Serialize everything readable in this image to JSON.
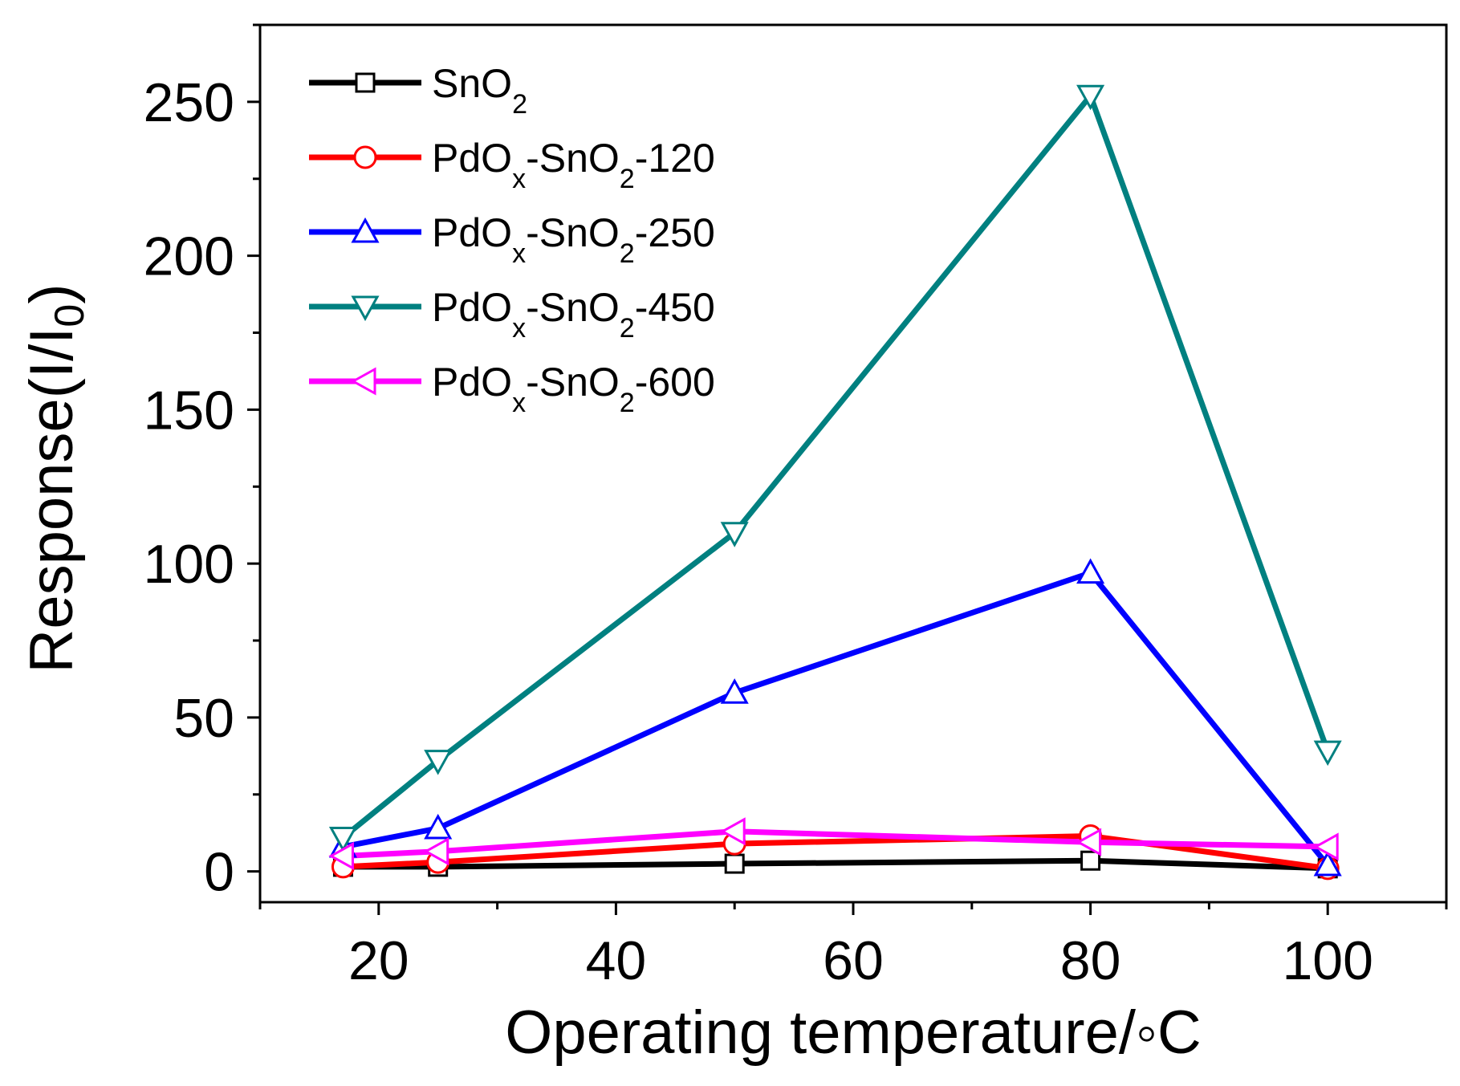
{
  "chart_data": {
    "type": "line",
    "title": "",
    "xlabel": "Operating temperature/◦C",
    "ylabel_parts": {
      "main": "Response(I/I",
      "sub": "0",
      "close": ")"
    },
    "xlim": [
      10,
      110
    ],
    "ylim": [
      -10,
      275
    ],
    "x_ticks": [
      20,
      40,
      60,
      80,
      100
    ],
    "x_minor_ticks": [
      10,
      30,
      50,
      70,
      90,
      110
    ],
    "y_ticks": [
      0,
      50,
      100,
      150,
      200,
      250
    ],
    "y_minor_ticks": [
      25,
      75,
      125,
      175,
      225,
      275
    ],
    "x": [
      17,
      25,
      50,
      80,
      100
    ],
    "legend_position": "top-left",
    "series": [
      {
        "name": "SnO2",
        "label_parts": [
          [
            "SnO",
            "n"
          ],
          [
            "2",
            "sub"
          ]
        ],
        "color": "#000000",
        "marker": "square",
        "values": [
          1.5,
          1.5,
          2.5,
          3.5,
          1
        ]
      },
      {
        "name": "PdOx-SnO2-120",
        "label_parts": [
          [
            "PdO",
            "n"
          ],
          [
            "x",
            "sub"
          ],
          [
            "-SnO",
            "n"
          ],
          [
            "2",
            "sub"
          ],
          [
            "-120",
            "n"
          ]
        ],
        "color": "#ff0000",
        "marker": "circle",
        "values": [
          1.5,
          3,
          9,
          11.5,
          1
        ]
      },
      {
        "name": "PdOx-SnO2-250",
        "label_parts": [
          [
            "PdO",
            "n"
          ],
          [
            "x",
            "sub"
          ],
          [
            "-SnO",
            "n"
          ],
          [
            "2",
            "sub"
          ],
          [
            "-250",
            "n"
          ]
        ],
        "color": "#0000ff",
        "marker": "triangle-up",
        "values": [
          8,
          14,
          58,
          97,
          2
        ]
      },
      {
        "name": "PdOx-SnO2-450",
        "label_parts": [
          [
            "PdO",
            "n"
          ],
          [
            "x",
            "sub"
          ],
          [
            "-SnO",
            "n"
          ],
          [
            "2",
            "sub"
          ],
          [
            "-450",
            "n"
          ]
        ],
        "color": "#008080",
        "marker": "triangle-down",
        "values": [
          11,
          36,
          110,
          252,
          39
        ]
      },
      {
        "name": "PdOx-SnO2-600",
        "label_parts": [
          [
            "PdO",
            "n"
          ],
          [
            "x",
            "sub"
          ],
          [
            "-SnO",
            "n"
          ],
          [
            "2",
            "sub"
          ],
          [
            "-600",
            "n"
          ]
        ],
        "color": "#ff00ff",
        "marker": "triangle-left",
        "values": [
          5,
          6.5,
          13,
          9.5,
          8
        ]
      }
    ]
  }
}
